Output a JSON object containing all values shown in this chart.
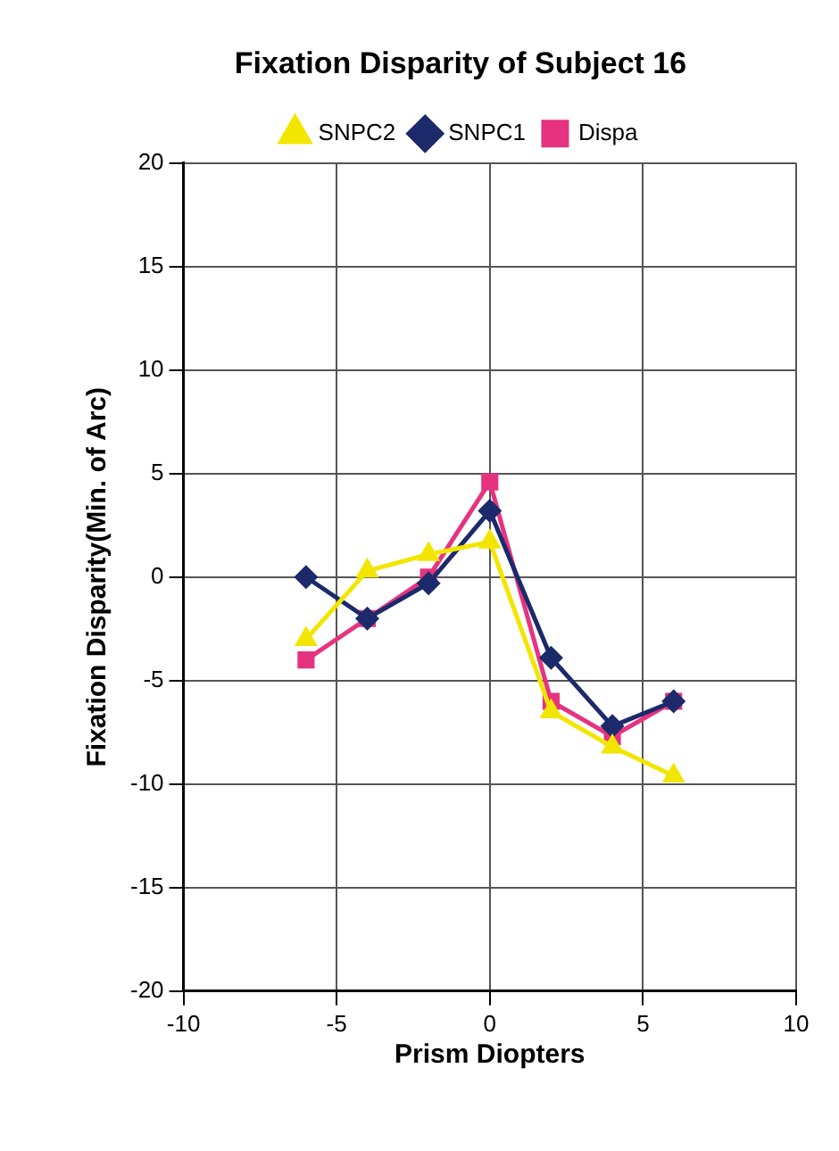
{
  "chart_data": {
    "type": "line",
    "title": "Fixation Disparity of Subject 16",
    "xlabel": "Prism Diopters",
    "ylabel": "Fixation Disparity(Min. of Arc)",
    "x": [
      -6,
      -4,
      -2,
      0,
      2,
      4,
      6
    ],
    "series": [
      {
        "name": "Dispa",
        "color": "#e6337f",
        "marker": "square",
        "values": [
          -4,
          -2,
          0,
          4.6,
          -6,
          -7.7,
          -6
        ]
      },
      {
        "name": "SNPC1",
        "color": "#1c2a6b",
        "marker": "diamond",
        "values": [
          0,
          -2,
          -0.3,
          3.2,
          -3.9,
          -7.2,
          -6
        ]
      },
      {
        "name": "SNPC2",
        "color": "#f2e600",
        "marker": "triangle",
        "values": [
          -3,
          0.3,
          1.1,
          1.7,
          -6.5,
          -8.2,
          -9.6
        ]
      }
    ],
    "xlim": [
      -10,
      10
    ],
    "xticks": [
      -10,
      -5,
      0,
      5,
      10
    ],
    "ylim": [
      -20,
      20
    ],
    "yticks": [
      -20,
      -15,
      -10,
      -5,
      0,
      5,
      10,
      15,
      20
    ],
    "grid": true,
    "legend": "top",
    "line_style": "solid"
  }
}
